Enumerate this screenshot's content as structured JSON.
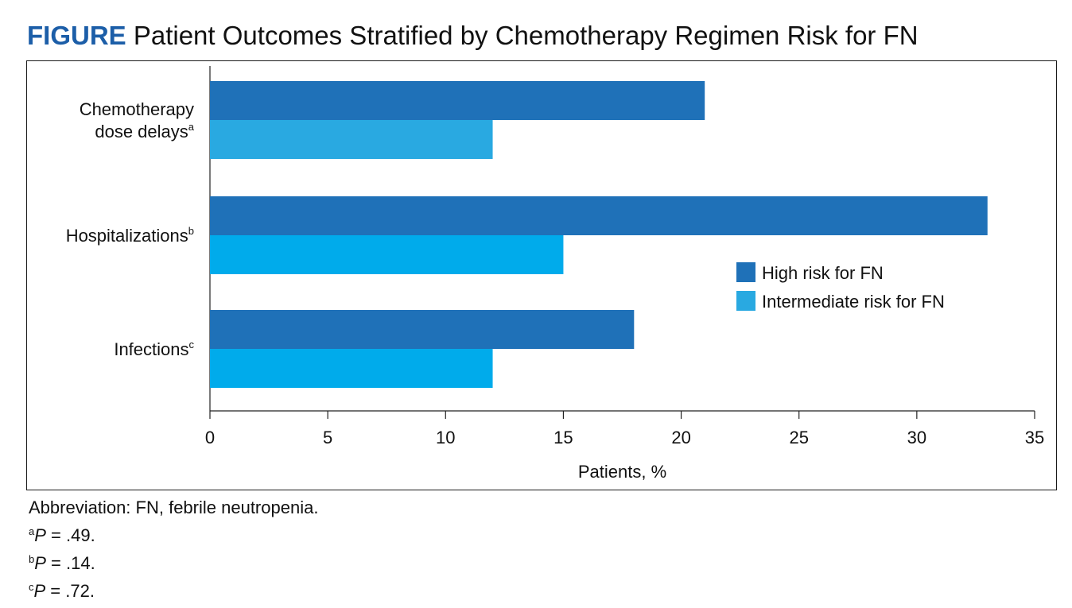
{
  "figure": {
    "label": "FIGURE",
    "title": "Patient Outcomes Stratified by Chemotherapy Regimen Risk for FN"
  },
  "colors": {
    "label_accent": "#1c5ea8",
    "high": "#1f71b8",
    "intermediate_1": "#29a9e1",
    "intermediate_2": "#00abeb"
  },
  "chart_data": {
    "type": "bar",
    "orientation": "horizontal",
    "categories": [
      {
        "label_lines": [
          "Chemotherapy",
          "dose delays"
        ],
        "footnote": "a"
      },
      {
        "label_lines": [
          "Hospitalizations"
        ],
        "footnote": "b"
      },
      {
        "label_lines": [
          "Infections"
        ],
        "footnote": "c"
      }
    ],
    "series": [
      {
        "name": "High risk for FN",
        "values": [
          21,
          33,
          18
        ]
      },
      {
        "name": "Intermediate risk for FN",
        "values": [
          12,
          15,
          12
        ]
      }
    ],
    "xlabel": "Patients, %",
    "xlim": [
      0,
      35
    ],
    "xticks": [
      0,
      5,
      10,
      15,
      20,
      25,
      30,
      35
    ],
    "grid": false,
    "legend_position": "right"
  },
  "footnotes": {
    "abbreviation": "Abbreviation: FN, febrile neutropenia.",
    "items": [
      {
        "mark": "a",
        "stat": "P",
        "text": " = .49."
      },
      {
        "mark": "b",
        "stat": "P",
        "text": " = .14."
      },
      {
        "mark": "c",
        "stat": "P",
        "text": " = .72."
      }
    ]
  }
}
